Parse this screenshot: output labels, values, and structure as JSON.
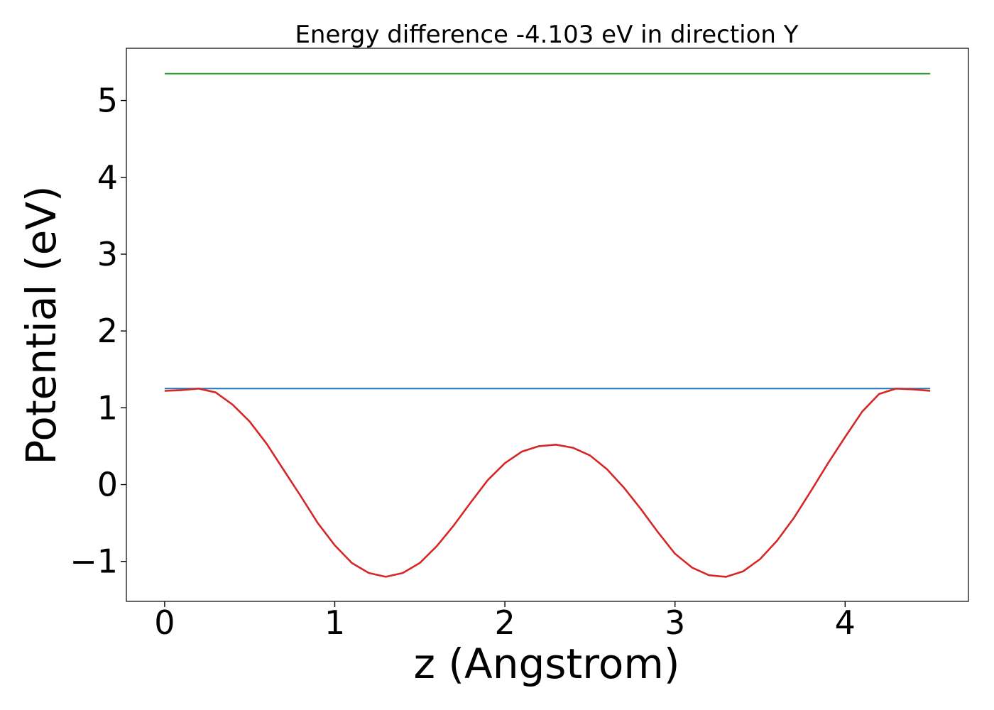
{
  "chart_data": {
    "type": "line",
    "title": "Energy difference -4.103 eV in direction Y",
    "xlabel": "z (Angstrom)",
    "ylabel": "Potential (eV)",
    "xlim": [
      -0.225,
      4.725
    ],
    "ylim": [
      -1.52,
      5.68
    ],
    "xticks": [
      0,
      1,
      2,
      3,
      4
    ],
    "xtick_labels": [
      "0",
      "1",
      "2",
      "3",
      "4"
    ],
    "yticks": [
      -1,
      0,
      1,
      2,
      3,
      4,
      5
    ],
    "ytick_labels": [
      "−1",
      "0",
      "1",
      "2",
      "3",
      "4",
      "5"
    ],
    "grid": false,
    "legend": "none",
    "series": [
      {
        "color": "#2ca02c",
        "x": [
          0,
          4.5
        ],
        "y": [
          5.35,
          5.35
        ]
      },
      {
        "color": "#1f77b4",
        "x": [
          0,
          4.5
        ],
        "y": [
          1.25,
          1.25
        ]
      },
      {
        "color": "#d62728",
        "x": [
          0,
          0.1,
          0.2,
          0.3,
          0.4,
          0.5,
          0.6,
          0.7,
          0.8,
          0.9,
          1.0,
          1.1,
          1.2,
          1.3,
          1.4,
          1.5,
          1.6,
          1.7,
          1.8,
          1.9,
          2.0,
          2.1,
          2.2,
          2.3,
          2.4,
          2.5,
          2.6,
          2.7,
          2.8,
          2.9,
          3.0,
          3.1,
          3.2,
          3.3,
          3.4,
          3.5,
          3.6,
          3.7,
          3.8,
          3.9,
          4.0,
          4.1,
          4.2,
          4.3,
          4.4,
          4.5
        ],
        "y": [
          1.22,
          1.23,
          1.25,
          1.2,
          1.04,
          0.82,
          0.53,
          0.19,
          -0.15,
          -0.5,
          -0.79,
          -1.02,
          -1.15,
          -1.2,
          -1.15,
          -1.02,
          -0.8,
          -0.53,
          -0.23,
          0.06,
          0.28,
          0.43,
          0.5,
          0.52,
          0.48,
          0.38,
          0.2,
          -0.04,
          -0.32,
          -0.62,
          -0.9,
          -1.08,
          -1.18,
          -1.2,
          -1.13,
          -0.97,
          -0.73,
          -0.43,
          -0.08,
          0.28,
          0.62,
          0.95,
          1.18,
          1.25,
          1.24,
          1.22
        ]
      }
    ]
  }
}
